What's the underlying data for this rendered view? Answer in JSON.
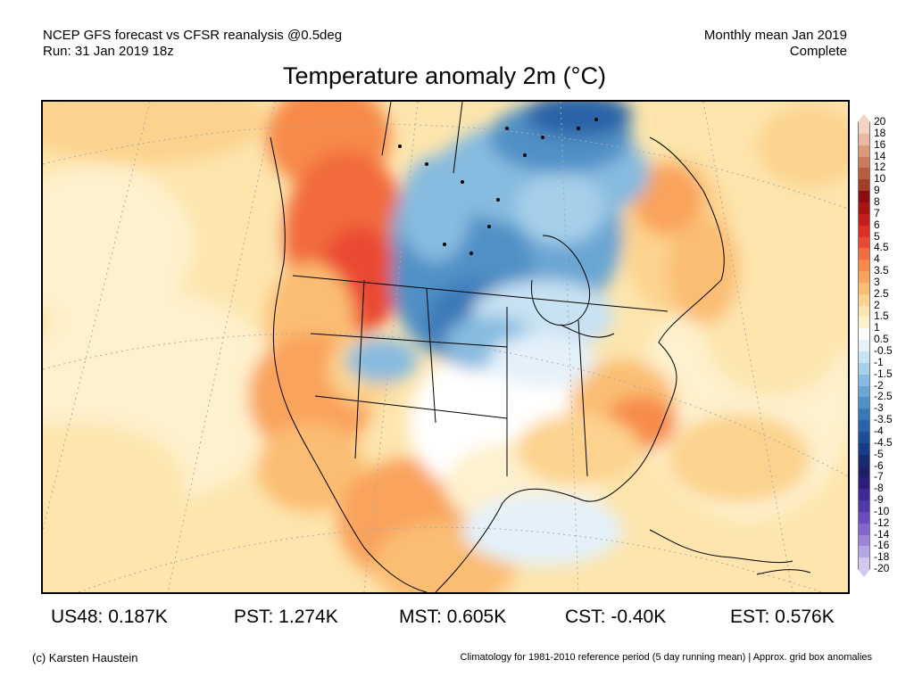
{
  "header": {
    "line1_left": "NCEP GFS forecast vs CFSR reanalysis @0.5deg",
    "line2_left": "Run: 31 Jan 2019 18z",
    "line1_right": "Monthly mean Jan 2019",
    "line2_right": "Complete"
  },
  "title": "Temperature anomaly 2m (°C)",
  "colorbar": {
    "labels": [
      "20",
      "18",
      "16",
      "14",
      "12",
      "10",
      "9",
      "8",
      "7",
      "6",
      "5",
      "4.5",
      "4",
      "3.5",
      "3",
      "2.5",
      "2",
      "1.5",
      "1",
      "0.5",
      "-0.5",
      "-1",
      "-1.5",
      "-2",
      "-2.5",
      "-3",
      "-3.5",
      "-4",
      "-4.5",
      "-5",
      "-6",
      "-7",
      "-8",
      "-9",
      "-10",
      "-12",
      "-14",
      "-16",
      "-18",
      "-20"
    ],
    "colors": [
      "#f3d3c2",
      "#e8b99f",
      "#d9997a",
      "#c97a5a",
      "#b65c3f",
      "#a03f28",
      "#8b0f0f",
      "#a81414",
      "#c41f1f",
      "#db2f27",
      "#ea4a33",
      "#f26a3d",
      "#f78a4a",
      "#f9a35c",
      "#fbbd73",
      "#fcd38e",
      "#fde5ad",
      "#fef1cd",
      "#ffffff",
      "#e4f1fa",
      "#c7e2f3",
      "#a6cfe9",
      "#87bbdf",
      "#6ba6d3",
      "#5090c6",
      "#3a79b7",
      "#2963a7",
      "#1d4e97",
      "#173b85",
      "#182a70",
      "#1f1f66",
      "#2f1d7e",
      "#412a96",
      "#5338aa",
      "#6a4cbc",
      "#8266cb",
      "#9c84d8",
      "#b7a4e4",
      "#d3c7f0"
    ]
  },
  "stats": [
    {
      "label": "US48: 0.187K"
    },
    {
      "label": "PST: 1.274K"
    },
    {
      "label": "MST: 0.605K"
    },
    {
      "label": "CST: -0.40K"
    },
    {
      "label": "EST: 0.576K"
    }
  ],
  "footer": {
    "left": "(c) Karsten Haustein",
    "right": "Climatology for 1981-2010 reference period (5 day running mean) | Approx. grid box anomalies"
  }
}
